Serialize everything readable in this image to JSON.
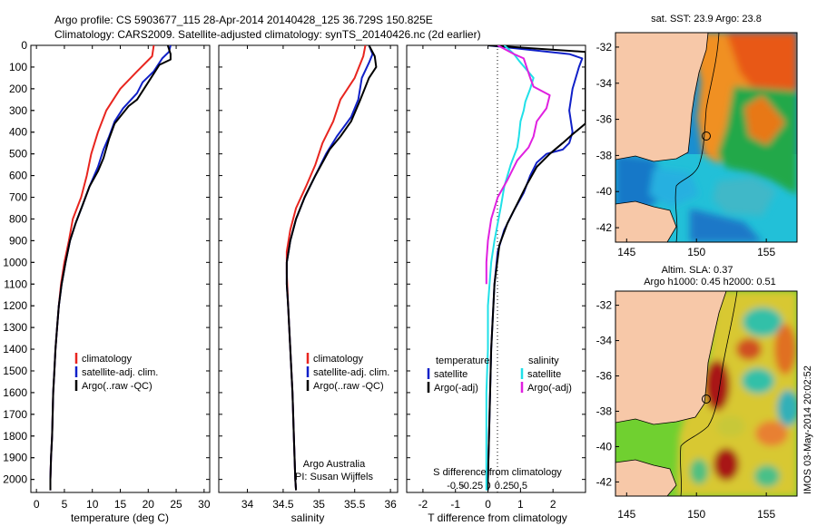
{
  "header": {
    "line1": "Argo profile: CS 5903677_115 28-Apr-2014 20140428_125 36.729S 150.825E",
    "line2": "Climatology: CARS2009. Satellite-adjusted climatology: synTS_20140426.nc (2d earlier)"
  },
  "colors": {
    "climatology": "#e8251f",
    "satellite": "#1020c8",
    "argo": "#000000",
    "cyan": "#20e0e8",
    "magenta": "#e020e0"
  },
  "chart_data": [
    {
      "id": "temperature",
      "type": "line",
      "xlabel": "temperature (deg C)",
      "xlim": [
        -1,
        31
      ],
      "xticks": [
        0,
        5,
        10,
        15,
        20,
        25,
        30
      ],
      "ylim": [
        2060,
        0
      ],
      "yticks": [
        0,
        100,
        200,
        300,
        400,
        500,
        600,
        700,
        800,
        900,
        1000,
        1100,
        1200,
        1300,
        1400,
        1500,
        1600,
        1700,
        1800,
        1900,
        2000
      ],
      "legend": [
        "climatology",
        "satellite-adj. clim.",
        "Argo(..raw -QC)"
      ],
      "series": [
        {
          "name": "climatology",
          "color": "climatology",
          "points": [
            [
              21,
              0
            ],
            [
              20.7,
              50
            ],
            [
              18,
              120
            ],
            [
              15,
              200
            ],
            [
              12.5,
              300
            ],
            [
              11,
              400
            ],
            [
              9.8,
              500
            ],
            [
              9,
              600
            ],
            [
              8,
              700
            ],
            [
              6.5,
              800
            ],
            [
              5.8,
              900
            ],
            [
              5,
              1000
            ],
            [
              4.4,
              1100
            ],
            [
              4,
              1200
            ],
            [
              3.7,
              1300
            ],
            [
              3.4,
              1400
            ],
            [
              3.2,
              1500
            ],
            [
              3,
              1600
            ],
            [
              2.9,
              1700
            ],
            [
              2.8,
              1800
            ],
            [
              2.6,
              1900
            ],
            [
              2.5,
              2000
            ],
            [
              2.5,
              2050
            ]
          ]
        },
        {
          "name": "satellite-adj. clim.",
          "color": "satellite",
          "points": [
            [
              24,
              0
            ],
            [
              23.7,
              30
            ],
            [
              22.5,
              60
            ],
            [
              21,
              120
            ],
            [
              19,
              170
            ],
            [
              18,
              220
            ],
            [
              15.5,
              290
            ],
            [
              14,
              350
            ],
            [
              13,
              420
            ],
            [
              12,
              480
            ],
            [
              11,
              560
            ],
            [
              9.5,
              650
            ],
            [
              8.2,
              740
            ],
            [
              7,
              820
            ],
            [
              6,
              900
            ],
            [
              5.2,
              1000
            ],
            [
              4.5,
              1100
            ],
            [
              4,
              1200
            ],
            [
              3.7,
              1300
            ],
            [
              3.4,
              1400
            ],
            [
              3.2,
              1500
            ],
            [
              3,
              1600
            ],
            [
              2.9,
              1700
            ],
            [
              2.8,
              1800
            ],
            [
              2.6,
              1900
            ],
            [
              2.5,
              2000
            ],
            [
              2.5,
              2050
            ]
          ]
        },
        {
          "name": "Argo(..raw -QC)",
          "color": "argo",
          "points": [
            [
              23.5,
              0
            ],
            [
              24,
              40
            ],
            [
              24,
              65
            ],
            [
              22,
              90
            ],
            [
              20,
              170
            ],
            [
              18,
              250
            ],
            [
              16.5,
              280
            ],
            [
              14,
              360
            ],
            [
              13,
              430
            ],
            [
              12,
              520
            ],
            [
              11,
              580
            ],
            [
              9.5,
              650
            ],
            [
              8.2,
              740
            ],
            [
              7,
              820
            ],
            [
              6,
              900
            ],
            [
              5.2,
              1000
            ],
            [
              4.5,
              1100
            ],
            [
              4,
              1200
            ],
            [
              3.7,
              1300
            ],
            [
              3.4,
              1400
            ],
            [
              3.2,
              1500
            ],
            [
              3,
              1600
            ],
            [
              2.9,
              1700
            ],
            [
              2.8,
              1800
            ],
            [
              2.6,
              1900
            ],
            [
              2.5,
              2000
            ],
            [
              2.5,
              2050
            ]
          ]
        }
      ]
    },
    {
      "id": "salinity",
      "type": "line",
      "xlabel": "salinity",
      "xlim": [
        33.6,
        36.1
      ],
      "xticks": [
        34,
        34.5,
        35,
        35.5,
        36
      ],
      "ylim": [
        2060,
        0
      ],
      "legend": [
        "climatology",
        "satellite-adj. clim.",
        "Argo(..raw -QC)"
      ],
      "annotation": [
        "Argo Australia",
        "PI: Susan Wijffels"
      ],
      "series": [
        {
          "name": "climatology",
          "color": "climatology",
          "points": [
            [
              35.65,
              0
            ],
            [
              35.62,
              50
            ],
            [
              35.5,
              150
            ],
            [
              35.3,
              250
            ],
            [
              35.2,
              350
            ],
            [
              35.05,
              450
            ],
            [
              34.95,
              550
            ],
            [
              34.82,
              650
            ],
            [
              34.68,
              750
            ],
            [
              34.6,
              850
            ],
            [
              34.55,
              950
            ],
            [
              34.55,
              1050
            ],
            [
              34.57,
              1200
            ],
            [
              34.6,
              1400
            ],
            [
              34.63,
              1600
            ],
            [
              34.65,
              1800
            ],
            [
              34.67,
              2000
            ],
            [
              34.68,
              2050
            ]
          ]
        },
        {
          "name": "satellite-adj. clim.",
          "color": "satellite",
          "points": [
            [
              35.7,
              0
            ],
            [
              35.75,
              40
            ],
            [
              35.7,
              80
            ],
            [
              35.6,
              150
            ],
            [
              35.55,
              250
            ],
            [
              35.45,
              330
            ],
            [
              35.25,
              420
            ],
            [
              35.1,
              500
            ],
            [
              34.95,
              600
            ],
            [
              34.8,
              700
            ],
            [
              34.68,
              800
            ],
            [
              34.6,
              900
            ],
            [
              34.55,
              1000
            ],
            [
              34.55,
              1100
            ],
            [
              34.57,
              1200
            ],
            [
              34.6,
              1400
            ],
            [
              34.63,
              1600
            ],
            [
              34.65,
              1800
            ],
            [
              34.67,
              2000
            ],
            [
              34.68,
              2050
            ]
          ]
        },
        {
          "name": "Argo(..raw -QC)",
          "color": "argo",
          "points": [
            [
              35.7,
              0
            ],
            [
              35.78,
              50
            ],
            [
              35.8,
              100
            ],
            [
              35.7,
              150
            ],
            [
              35.58,
              250
            ],
            [
              35.45,
              350
            ],
            [
              35.3,
              420
            ],
            [
              35.15,
              480
            ],
            [
              34.95,
              600
            ],
            [
              34.8,
              700
            ],
            [
              34.68,
              800
            ],
            [
              34.6,
              900
            ],
            [
              34.55,
              1000
            ],
            [
              34.55,
              1100
            ],
            [
              34.57,
              1200
            ],
            [
              34.6,
              1400
            ],
            [
              34.63,
              1600
            ],
            [
              34.65,
              1800
            ],
            [
              34.67,
              2000
            ],
            [
              34.68,
              2050
            ]
          ]
        }
      ]
    },
    {
      "id": "difference",
      "type": "line",
      "xlabel": "T difference from climatology",
      "xlabel_top": "S difference from climatology",
      "xlim": [
        -2.5,
        3
      ],
      "xticks": [
        -2,
        -1,
        0,
        1,
        2
      ],
      "xticks_top": [
        -0.5,
        -0.25,
        0,
        0.25,
        0.5
      ],
      "ylim": [
        2060,
        0
      ],
      "legend_titles": [
        "temperature",
        "salinity"
      ],
      "legend": [
        "satellite",
        "Argo(-adj)",
        "satellite",
        "Argo(-adj)"
      ],
      "series": [
        {
          "name": "T satellite",
          "color": "satellite",
          "points": [
            [
              0,
              0
            ],
            [
              2.5,
              40
            ],
            [
              2.9,
              60
            ],
            [
              2.8,
              100
            ],
            [
              2.6,
              200
            ],
            [
              2.5,
              300
            ],
            [
              2.6,
              400
            ],
            [
              2.5,
              450
            ],
            [
              2.3,
              480
            ],
            [
              1.8,
              500
            ],
            [
              1.5,
              540
            ],
            [
              1.3,
              600
            ],
            [
              1.1,
              680
            ],
            [
              0.8,
              760
            ],
            [
              0.5,
              850
            ],
            [
              0.3,
              950
            ],
            [
              0.2,
              1100
            ],
            [
              0.1,
              1400
            ],
            [
              0.05,
              1700
            ],
            [
              0,
              2000
            ],
            [
              0,
              2050
            ]
          ]
        },
        {
          "name": "T Argo(-adj)",
          "color": "argo",
          "points": [
            [
              0,
              0
            ],
            [
              3,
              30
            ],
            [
              3,
              360
            ],
            [
              2.6,
              410
            ],
            [
              2.3,
              450
            ],
            [
              1.9,
              500
            ],
            [
              1.5,
              560
            ],
            [
              1.2,
              640
            ],
            [
              0.9,
              730
            ],
            [
              0.6,
              820
            ],
            [
              0.35,
              920
            ],
            [
              0.2,
              1100
            ],
            [
              0.1,
              1400
            ],
            [
              0.05,
              1700
            ],
            [
              0,
              2000
            ],
            [
              0,
              2050
            ]
          ]
        },
        {
          "name": "S satellite",
          "color": "cyan",
          "points": [
            [
              0.5,
              0
            ],
            [
              0.8,
              40
            ],
            [
              0.95,
              70
            ],
            [
              1.4,
              150
            ],
            [
              1.3,
              200
            ],
            [
              1.2,
              240
            ],
            [
              1.15,
              260
            ],
            [
              1.1,
              300
            ],
            [
              1.0,
              350
            ],
            [
              0.95,
              420
            ],
            [
              0.9,
              470
            ],
            [
              0.7,
              550
            ],
            [
              0.5,
              650
            ],
            [
              0.4,
              740
            ],
            [
              0.3,
              820
            ],
            [
              0.2,
              900
            ],
            [
              0.1,
              1000
            ],
            [
              0,
              1200
            ],
            [
              0,
              1400
            ],
            [
              -0.05,
              1600
            ],
            [
              -0.05,
              2000
            ],
            [
              -0.05,
              2050
            ]
          ]
        },
        {
          "name": "S Argo(-adj)",
          "color": "magenta",
          "points": [
            [
              0.3,
              0
            ],
            [
              0.8,
              40
            ],
            [
              1.1,
              60
            ],
            [
              1.3,
              150
            ],
            [
              1.4,
              190
            ],
            [
              1.9,
              230
            ],
            [
              1.8,
              290
            ],
            [
              1.5,
              350
            ],
            [
              1.4,
              420
            ],
            [
              1.25,
              470
            ],
            [
              0.9,
              530
            ],
            [
              0.6,
              620
            ],
            [
              0.3,
              700
            ],
            [
              0.1,
              800
            ],
            [
              0,
              900
            ],
            [
              -0.05,
              1000
            ],
            [
              -0.05,
              1100
            ]
          ]
        }
      ]
    }
  ],
  "maps": [
    {
      "id": "sst-map",
      "title": "sat. SST: 23.9 Argo: 23.8",
      "lon_ticks": [
        145,
        150,
        155
      ],
      "lat_ticks": [
        -32,
        -34,
        -36,
        -38,
        -40,
        -42
      ],
      "argo_lon": 150.825,
      "argo_lat": -36.729
    },
    {
      "id": "sla-map",
      "title": "Altim. SLA: 0.37",
      "title2": "Argo h1000: 0.45 h2000: 0.51",
      "lon_ticks": [
        145,
        150,
        155
      ],
      "lat_ticks": [
        -32,
        -34,
        -36,
        -38,
        -40,
        -42
      ],
      "argo_lon": 150.825,
      "argo_lat": -36.729
    }
  ],
  "watermark": "IMOS 03-May-2014 20:02:52"
}
